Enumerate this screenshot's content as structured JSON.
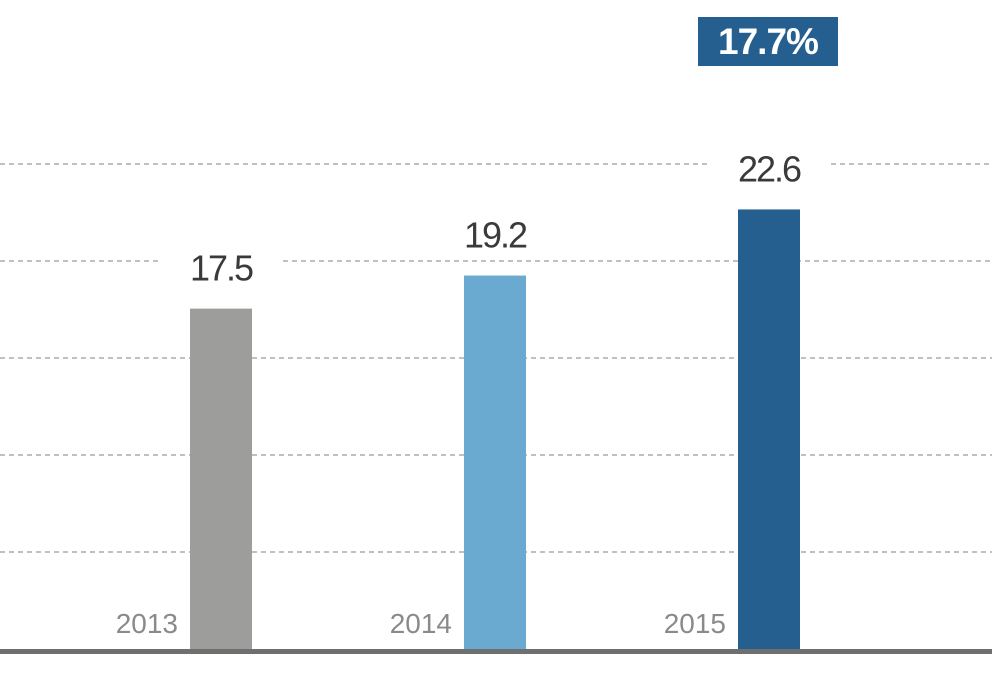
{
  "chart_data": {
    "type": "bar",
    "categories": [
      "2013",
      "2014",
      "2015"
    ],
    "values": [
      17.5,
      19.2,
      22.6
    ],
    "value_labels": [
      "17.5",
      "19.2",
      "22.6"
    ],
    "bar_colors": [
      "#9d9d9c",
      "#6aaad0",
      "#255f90"
    ],
    "ylim": [
      0,
      25
    ],
    "grid": true,
    "title": "",
    "xlabel": "",
    "ylabel": "",
    "highlight": {
      "text": "17.7%",
      "color": "#255f90"
    }
  },
  "colors": {
    "grid": "#9a9a9a",
    "axis": "#6f6f6f",
    "value_label": "#3a3a3a",
    "category_label": "#8a8a8a",
    "badge_text": "#ffffff"
  }
}
